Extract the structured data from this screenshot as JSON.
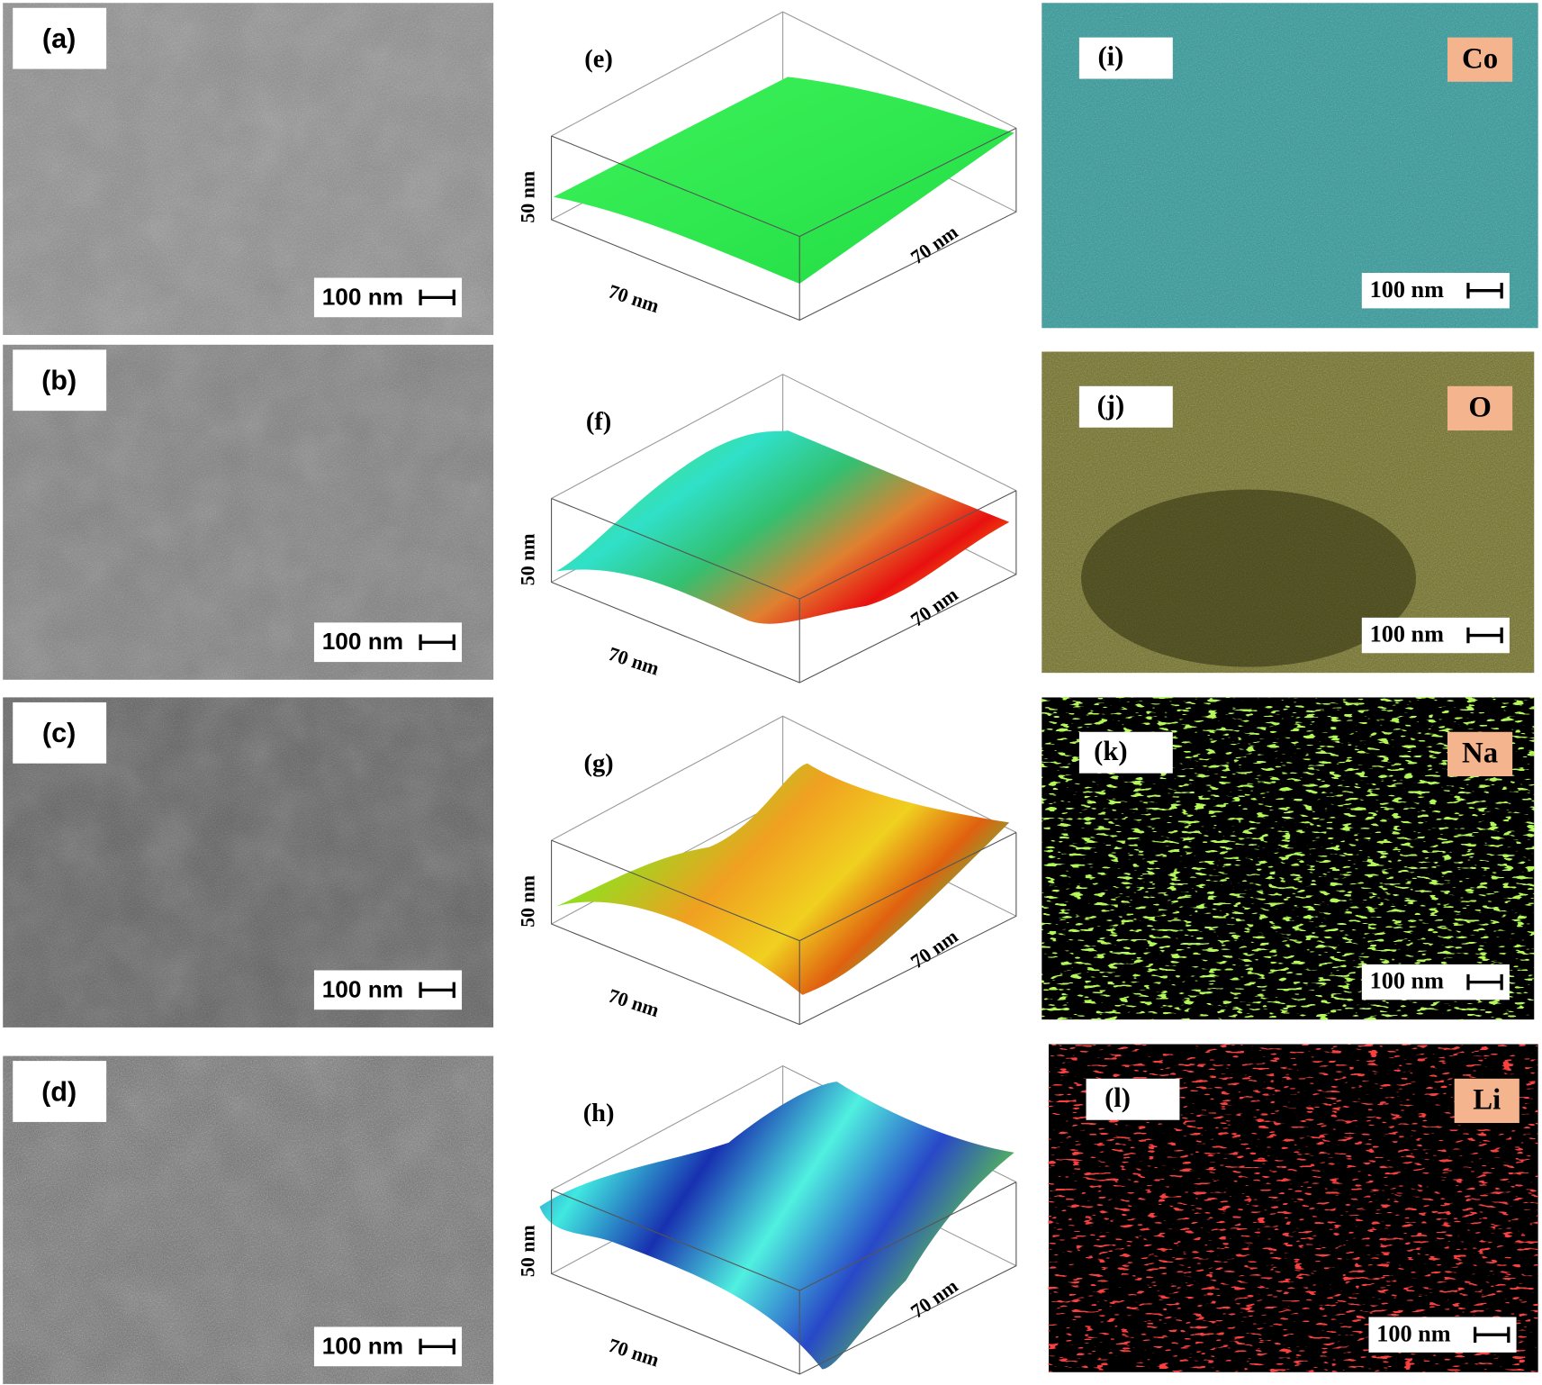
{
  "sem_panels": [
    {
      "label": "(a)",
      "scale_bar": "100 nm"
    },
    {
      "label": "(b)",
      "scale_bar": "100 nm"
    },
    {
      "label": "(c)",
      "scale_bar": "100 nm"
    },
    {
      "label": "(d)",
      "scale_bar": "100 nm"
    }
  ],
  "afm_panels": [
    {
      "label": "(e)",
      "z_axis": "50 nm",
      "x_axis": "70 nm",
      "y_axis": "70 nm"
    },
    {
      "label": "(f)",
      "z_axis": "50 nm",
      "x_axis": "70 nm",
      "y_axis": "70 nm"
    },
    {
      "label": "(g)",
      "z_axis": "50 nm",
      "x_axis": "70 nm",
      "y_axis": "70 nm"
    },
    {
      "label": "(h)",
      "z_axis": "50 nm",
      "x_axis": "70 nm",
      "y_axis": "70 nm"
    }
  ],
  "eds_panels": [
    {
      "label": "(i)",
      "element": "Co",
      "scale_bar": "100 nm"
    },
    {
      "label": "(j)",
      "element": "O",
      "scale_bar": "100 nm"
    },
    {
      "label": "(k)",
      "element": "Na",
      "scale_bar": "100 nm"
    },
    {
      "label": "(l)",
      "element": "Li",
      "scale_bar": "100 nm"
    }
  ]
}
